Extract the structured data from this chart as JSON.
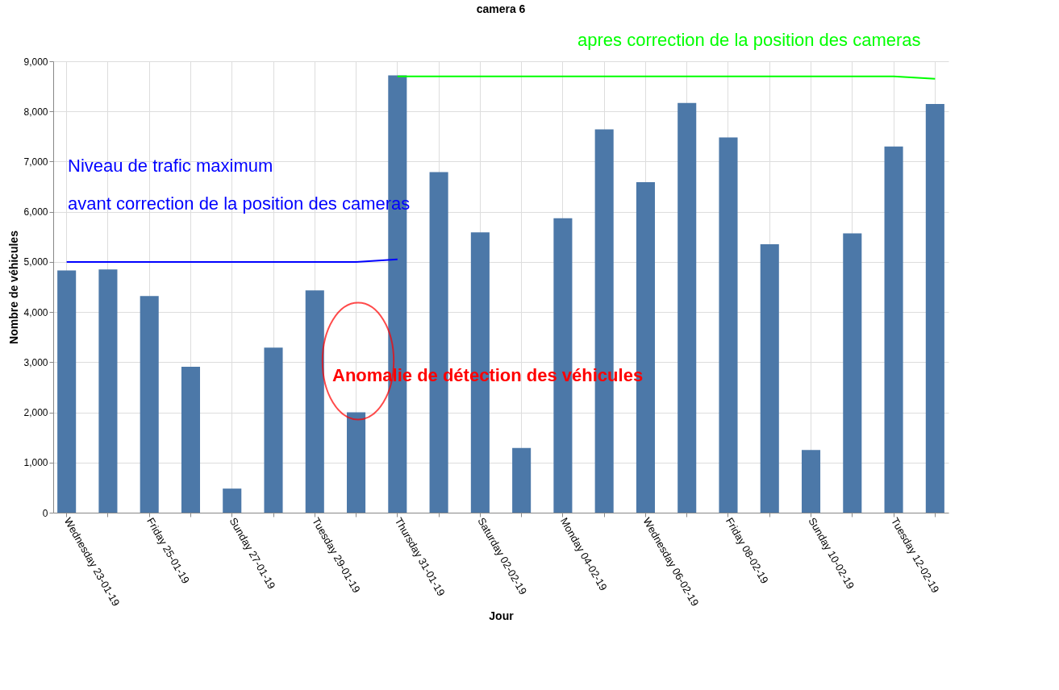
{
  "chart_data": {
    "type": "bar",
    "title": "camera 6",
    "xlabel": "Jour",
    "ylabel": "Nombre de véhicules",
    "categories": [
      "Wednesday 23-01-19",
      null,
      "Friday 25-01-19",
      null,
      "Sunday 27-01-19",
      null,
      "Tuesday 29-01-19",
      null,
      "Thursday 31-01-19",
      null,
      "Saturday 02-02-19",
      null,
      "Monday 04-02-19",
      null,
      "Wednesday 06-02-19",
      null,
      "Friday 08-02-19",
      null,
      "Sunday 10-02-19",
      null,
      "Tuesday 12-02-19",
      null
    ],
    "series": [
      {
        "color": "#4c78a8",
        "values": [
          4830,
          4850,
          4320,
          2910,
          480,
          3290,
          4430,
          2000,
          8720,
          6790,
          5590,
          1290,
          5870,
          7640,
          6590,
          8170,
          7480,
          5350,
          1250,
          5570,
          7300,
          8150
        ]
      },
      {
        "type": "line",
        "color": "#0000ff",
        "values": [
          5000,
          5000,
          5000,
          5000,
          5000,
          5000,
          5000,
          5000,
          5050,
          null,
          null,
          null,
          null,
          null,
          null,
          null,
          null,
          null,
          null,
          null,
          null,
          null
        ]
      },
      {
        "type": "line",
        "color": "#00ff00",
        "values": [
          null,
          null,
          null,
          null,
          null,
          null,
          null,
          null,
          8700,
          8700,
          8700,
          8700,
          8700,
          8700,
          8700,
          8700,
          8700,
          8700,
          8700,
          8700,
          8700,
          8650
        ]
      }
    ],
    "ylim": [
      0,
      9000
    ],
    "yticks": [
      {
        "value": 0,
        "label": "0"
      },
      {
        "value": 1000,
        "label": "1,000"
      },
      {
        "value": 2000,
        "label": "2,000"
      },
      {
        "value": 3000,
        "label": "3,000"
      },
      {
        "value": 4000,
        "label": "4,000"
      },
      {
        "value": 5000,
        "label": "5,000"
      },
      {
        "value": 6000,
        "label": "6,000"
      },
      {
        "value": 7000,
        "label": "7,000"
      },
      {
        "value": 8000,
        "label": "8,000"
      },
      {
        "value": 9000,
        "label": "9,000"
      }
    ],
    "grid": true,
    "annotations": [
      "Niveau de trafic maximum",
      "avant correction de la position des cameras",
      "apres correction de la position des cameras",
      "Anomalie de détection des véhicules"
    ]
  }
}
